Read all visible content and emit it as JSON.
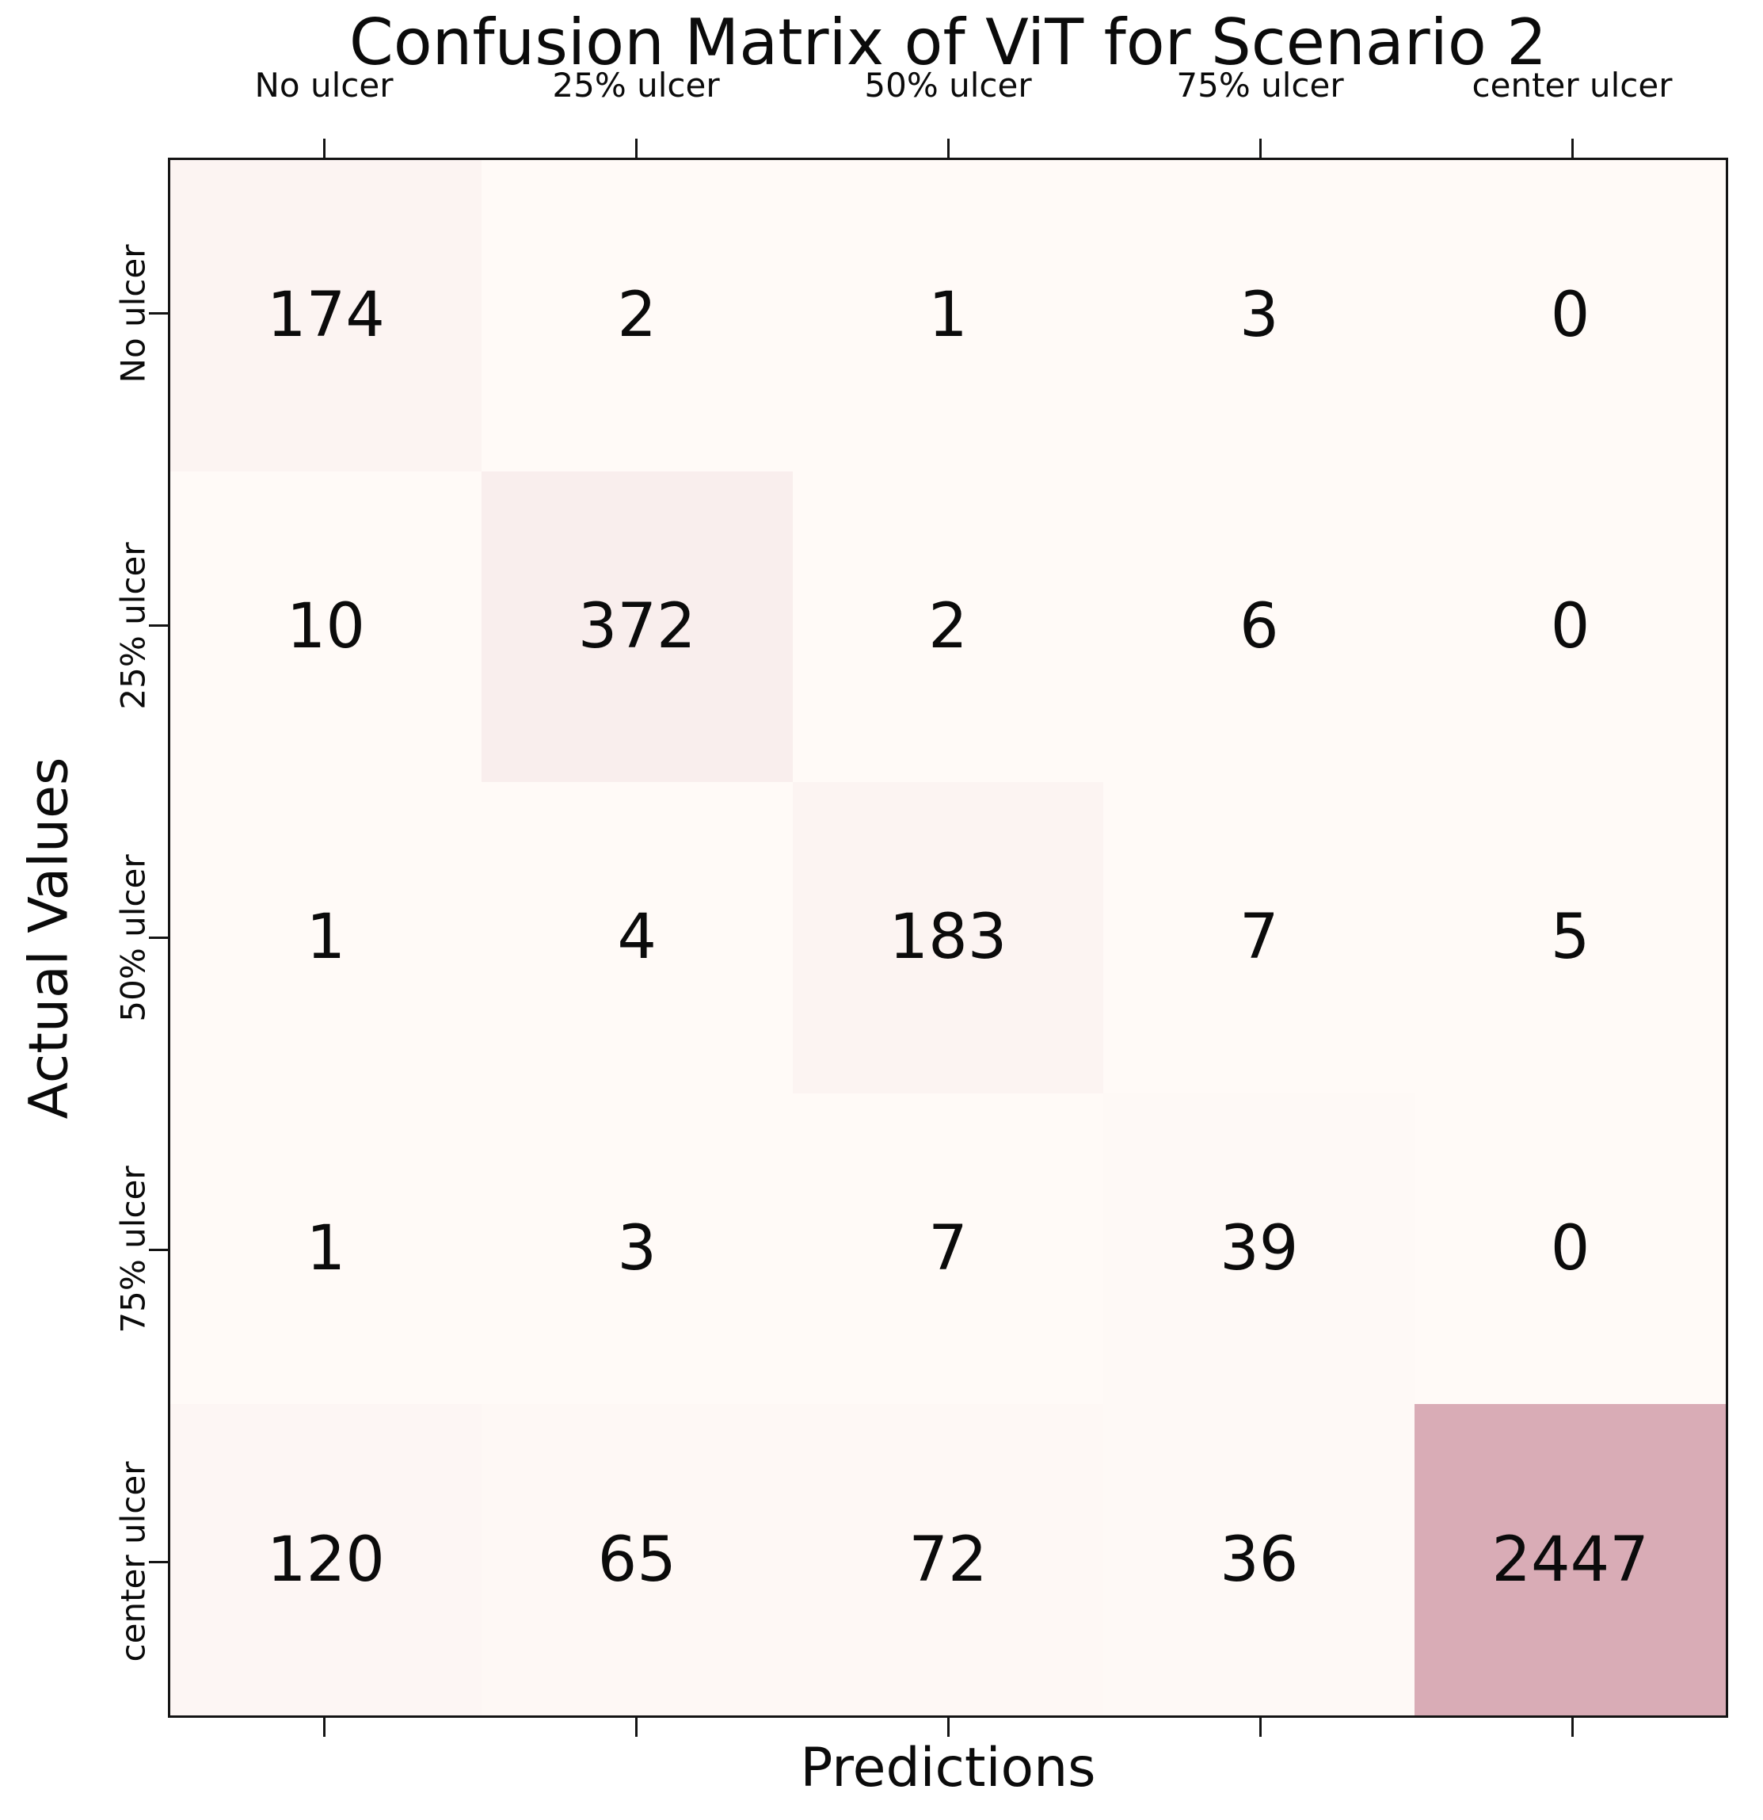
{
  "title": "Confusion Matrix of ViT for Scenario 2",
  "chart_data": {
    "type": "heatmap",
    "title": "Confusion Matrix of ViT for Scenario 2",
    "xlabel": "Predictions",
    "ylabel": "Actual Values",
    "x_categories": [
      "No ulcer",
      "25% ulcer",
      "50% ulcer",
      "75% ulcer",
      "center ulcer"
    ],
    "y_categories": [
      "No ulcer",
      "25% ulcer",
      "50% ulcer",
      "75% ulcer",
      "center ulcer"
    ],
    "matrix": [
      [
        174,
        2,
        1,
        3,
        0
      ],
      [
        10,
        372,
        2,
        6,
        0
      ],
      [
        1,
        4,
        183,
        7,
        5
      ],
      [
        1,
        3,
        7,
        39,
        0
      ],
      [
        120,
        65,
        72,
        36,
        2447
      ]
    ],
    "vmin": 0,
    "vmax": 2447,
    "colormap_low": "#fffaf7",
    "colormap_high": "#d9acb6",
    "grid": false,
    "legend_position": "none",
    "annotation_color": "#0b0b0b"
  }
}
